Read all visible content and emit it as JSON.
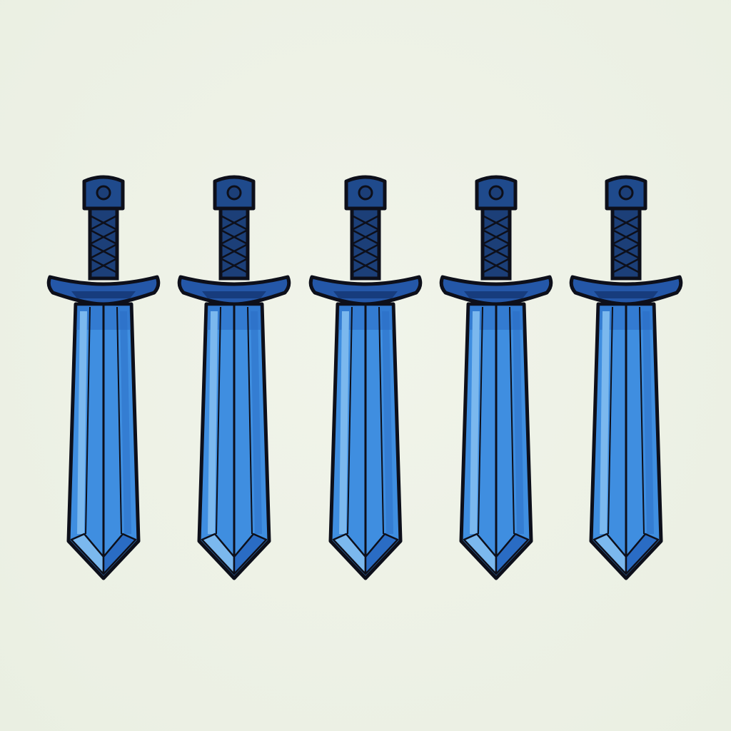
{
  "scene": {
    "background_color": "#eef2e6",
    "item_icon": "sword-icon",
    "item_count": 5,
    "colors": {
      "outline": "#0d0f1a",
      "pommel": "#1f4a8c",
      "grip": "#1c3f78",
      "guard": "#2457a8",
      "guard_shadow": "#163a78",
      "blade_main": "#3f8ee0",
      "blade_light": "#7bb8ee",
      "blade_dark": "#2a6cc4"
    }
  }
}
